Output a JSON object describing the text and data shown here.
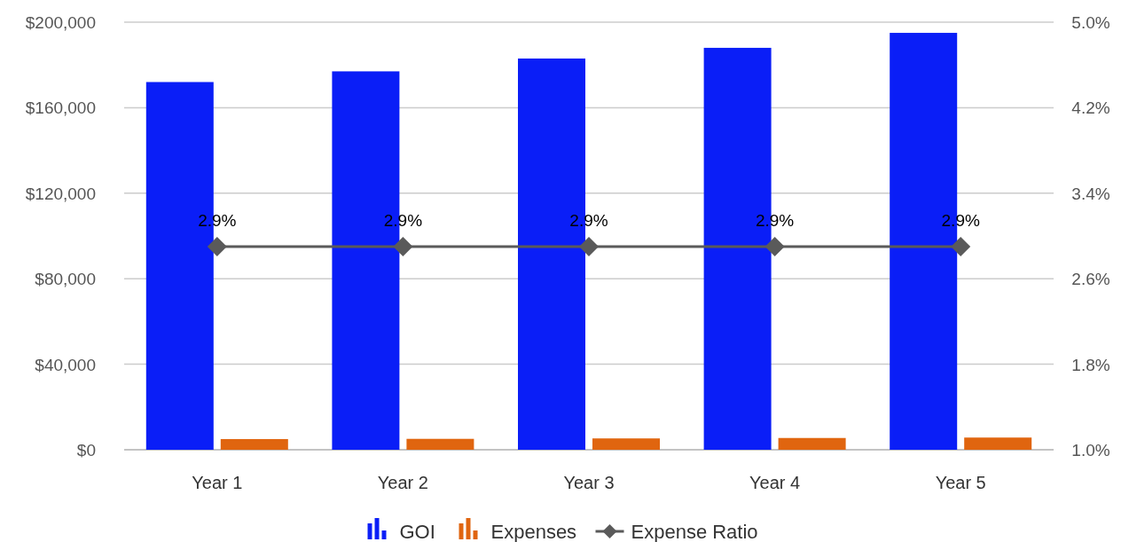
{
  "chart_data": {
    "type": "bar",
    "categories": [
      "Year 1",
      "Year 2",
      "Year 3",
      "Year 4",
      "Year 5"
    ],
    "series": [
      {
        "name": "GOI",
        "color": "#0a1ef7",
        "values": [
          172000,
          177000,
          183000,
          188000,
          195000
        ]
      },
      {
        "name": "Expenses",
        "color": "#e0650f",
        "values": [
          5000,
          5100,
          5300,
          5500,
          5700
        ]
      },
      {
        "name": "Expense Ratio",
        "type": "line",
        "axis": "y2",
        "color": "#5a5a5a",
        "marker": "diamond",
        "values": [
          2.9,
          2.9,
          2.9,
          2.9,
          2.9
        ],
        "value_labels": [
          "2.9%",
          "2.9%",
          "2.9%",
          "2.9%",
          "2.9%"
        ]
      }
    ],
    "ylim": [
      0,
      200000
    ],
    "yticks": [
      {
        "value": 0,
        "label": "$0"
      },
      {
        "value": 40000,
        "label": "$40,000"
      },
      {
        "value": 80000,
        "label": "$80,000"
      },
      {
        "value": 120000,
        "label": "$120,000"
      },
      {
        "value": 160000,
        "label": "$160,000"
      },
      {
        "value": 200000,
        "label": "$200,000"
      }
    ],
    "y2lim": [
      1.0,
      5.0
    ],
    "y2ticks": [
      {
        "value": 1.0,
        "label": "1.0%"
      },
      {
        "value": 1.8,
        "label": "1.8%"
      },
      {
        "value": 2.6,
        "label": "2.6%"
      },
      {
        "value": 3.4,
        "label": "3.4%"
      },
      {
        "value": 4.2,
        "label": "4.2%"
      },
      {
        "value": 5.0,
        "label": "5.0%"
      }
    ],
    "grid": "y",
    "legend": "bottom"
  }
}
